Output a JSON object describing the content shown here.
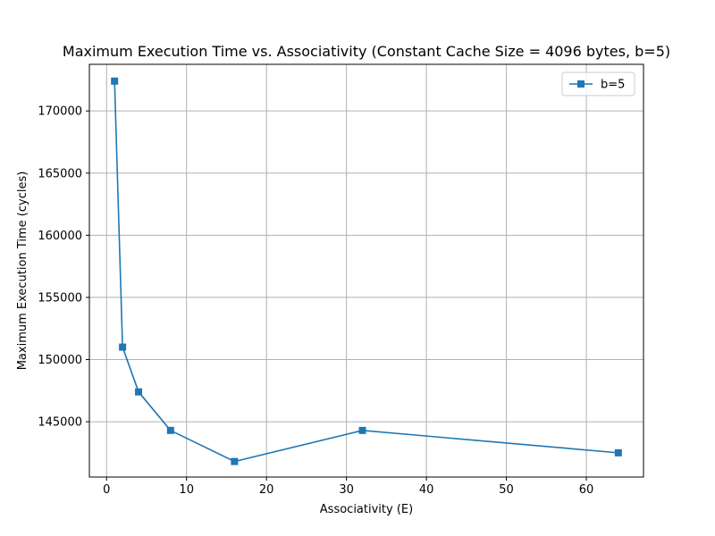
{
  "chart_data": {
    "type": "line",
    "title": "Maximum Execution Time vs. Associativity (Constant Cache Size = 4096 bytes, b=5)",
    "xlabel": "Associativity (E)",
    "ylabel": "Maximum Execution Time (cycles)",
    "xlim": [
      -2.15,
      67.15
    ],
    "ylim": [
      140550,
      173750
    ],
    "xticks": [
      0,
      10,
      20,
      30,
      40,
      50,
      60
    ],
    "yticks": [
      145000,
      150000,
      155000,
      160000,
      165000,
      170000
    ],
    "grid": true,
    "legend_position": "top-right",
    "marker": "square",
    "series": [
      {
        "name": "b=5",
        "color": "#1f77b4",
        "x": [
          1,
          2,
          4,
          8,
          16,
          32,
          64
        ],
        "y": [
          172400,
          151000,
          147400,
          144300,
          141800,
          144300,
          142500
        ]
      }
    ]
  }
}
